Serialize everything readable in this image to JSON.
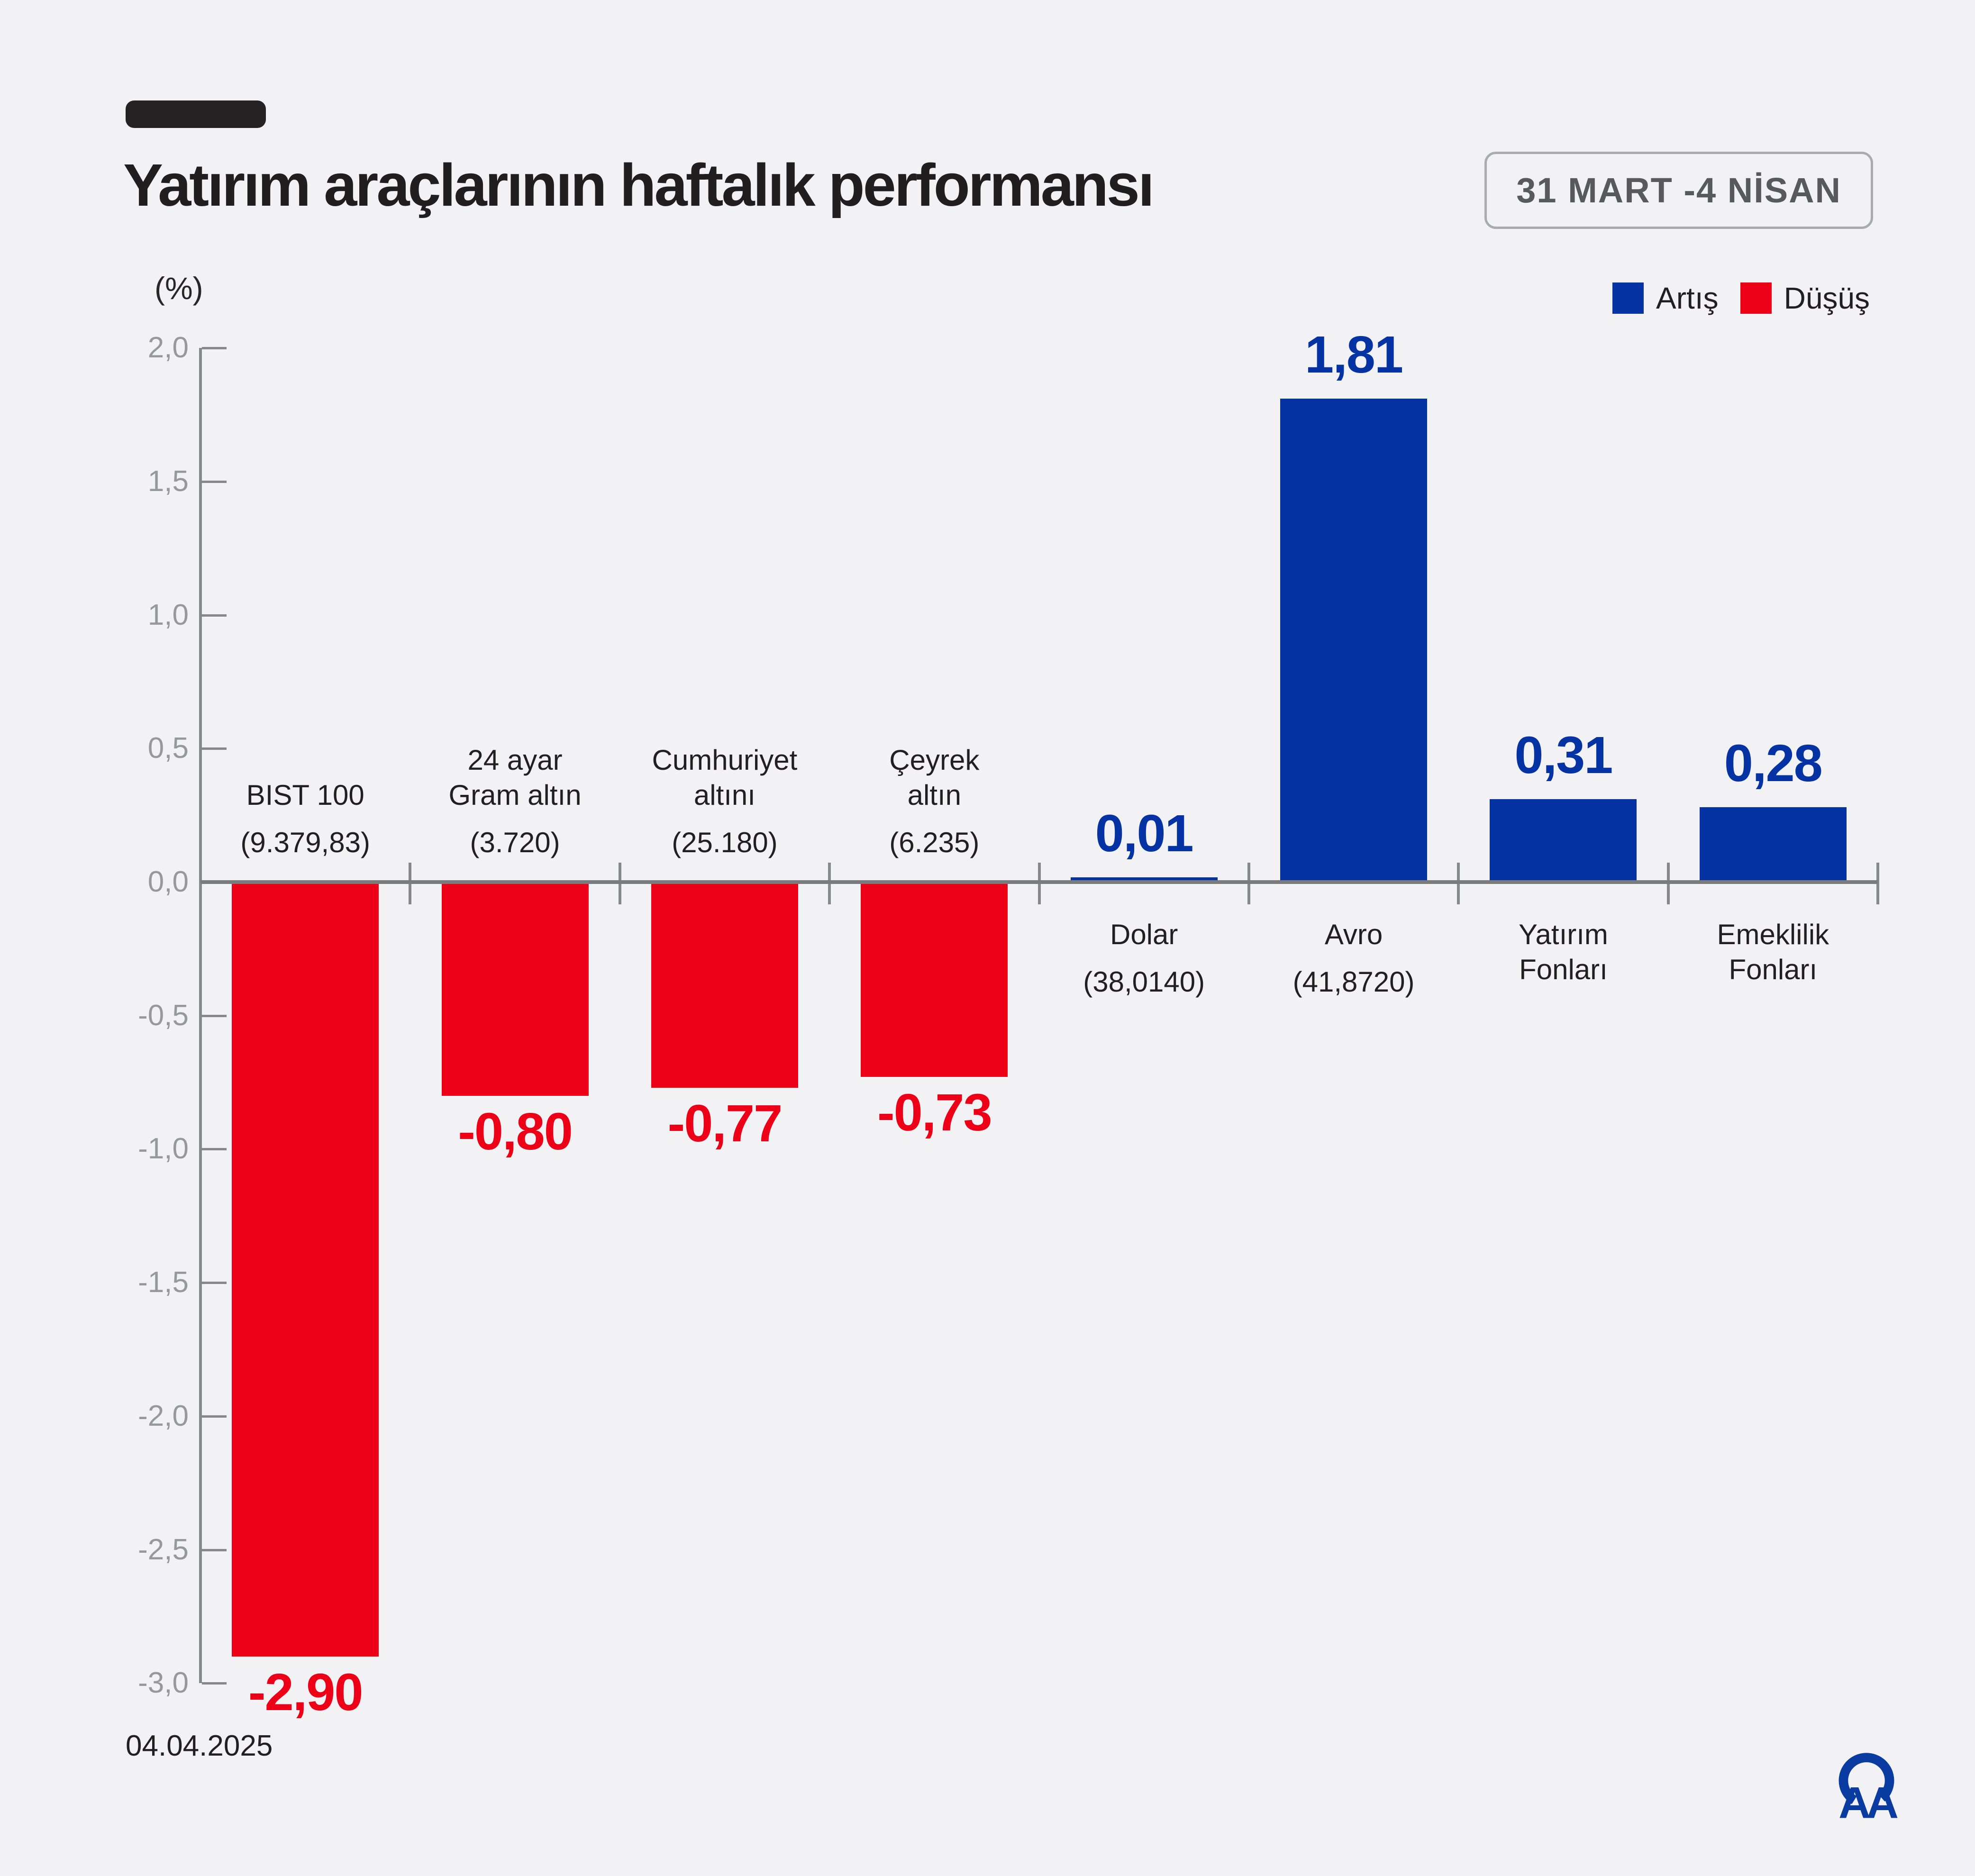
{
  "header": {
    "title": "Yatırım araçlarının haftalık performansı",
    "period": "31 MART -4 NİSAN"
  },
  "legend": {
    "up_label": "Artış",
    "down_label": "Düşüş"
  },
  "footer": {
    "date": "04.04.2025",
    "logo_text": "AA"
  },
  "colors": {
    "background": "#f2f2f4",
    "up": "#0533a3",
    "down": "#ed0017",
    "text_dark": "#231f20",
    "axis_gray": "#87888a",
    "tick_label_gray": "#97989b",
    "badge_text": "#58595b",
    "badge_border": "#aaabad"
  },
  "chart_data": {
    "type": "bar",
    "title": "Yatırım araçlarının haftalık performansı",
    "unit_label": "(%)",
    "xlabel": "",
    "ylabel": "(%)",
    "ylim": [
      -3.0,
      2.0
    ],
    "grid": false,
    "legend_position": "top-right",
    "categories": [
      "BIST 100",
      "24 ayar Gram altın",
      "Cumhuriyet altını",
      "Çeyrek altın",
      "Dolar",
      "Avro",
      "Yatırım Fonları",
      "Emeklilik Fonları"
    ],
    "name_lines": [
      [
        "BIST 100"
      ],
      [
        "24 ayar",
        "Gram altın"
      ],
      [
        "Cumhuriyet",
        "altını"
      ],
      [
        "Çeyrek",
        "altın"
      ],
      [
        "Dolar"
      ],
      [
        "Avro"
      ],
      [
        "Yatırım",
        "Fonları"
      ],
      [
        "Emeklilik",
        "Fonları"
      ]
    ],
    "slugs": [
      "bist-100",
      "gram-altin",
      "cumhuriyet-altini",
      "ceyrek-altin",
      "dolar",
      "avro",
      "yatirim-fonlari",
      "emeklilik-fonlari"
    ],
    "values": [
      -2.9,
      -0.8,
      -0.77,
      -0.73,
      0.01,
      1.81,
      0.31,
      0.28
    ],
    "value_labels": [
      "-2,90",
      "-0,80",
      "-0,77",
      "-0,73",
      "0,01",
      "1,81",
      "0,31",
      "0,28"
    ],
    "current_price_notes": [
      "(9.379,83)",
      "(3.720)",
      "(25.180)",
      "(6.235)",
      "(38,0140)",
      "(41,8720)",
      "",
      ""
    ],
    "directions": [
      "down",
      "down",
      "down",
      "down",
      "up",
      "up",
      "up",
      "up"
    ],
    "y_tick_labels": [
      "2,0",
      "1,5",
      "1,0",
      "0,5",
      "0,0",
      "-0,5",
      "-1,0",
      "-1,5",
      "-2,0",
      "-2,5",
      "-3,0"
    ],
    "y_tick_values": [
      2.0,
      1.5,
      1.0,
      0.5,
      0.0,
      -0.5,
      -1.0,
      -1.5,
      -2.0,
      -2.5,
      -3.0
    ]
  }
}
